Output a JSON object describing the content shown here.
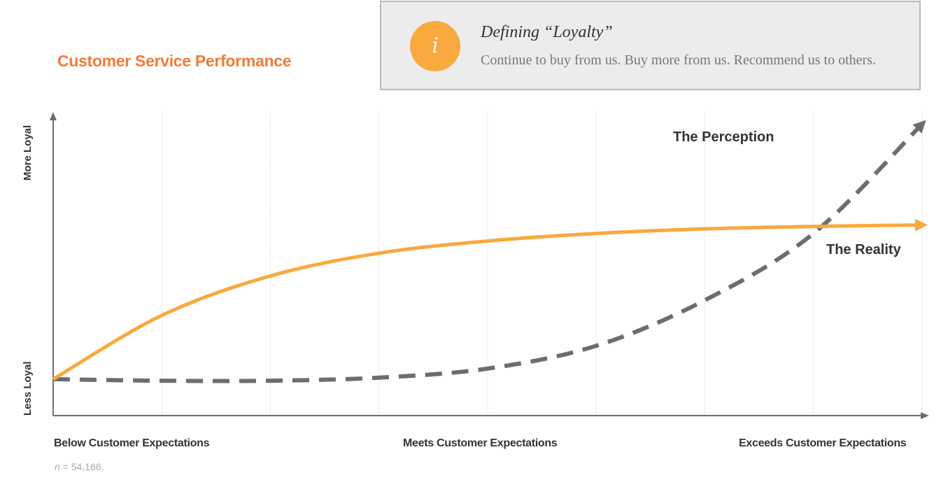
{
  "title": "Customer Service Performance",
  "info": {
    "icon": "info-icon",
    "icon_glyph": "i",
    "heading": "Defining “Loyalty”",
    "body": "Continue to buy from us. Buy more from us. Recommend us to others."
  },
  "axes": {
    "y_top": "More Loyal",
    "y_bottom": "Less Loyal",
    "x_left": "Below Customer Expectations",
    "x_mid": "Meets Customer Expectations",
    "x_right": "Exceeds Customer Expectations"
  },
  "note": {
    "n_symbol": "n",
    "n_value": " = 54,166."
  },
  "colors": {
    "title": "#f47a36",
    "reality": "#f9a93e",
    "perception": "#6d6d6d",
    "info_circle": "#f9a93e"
  },
  "chart_data": {
    "type": "line",
    "x": [
      0,
      1,
      2,
      3,
      4,
      5,
      6,
      7,
      8
    ],
    "ylim": [
      0,
      100
    ],
    "xlim": [
      0,
      8
    ],
    "grid": "vertical-dotted",
    "series": [
      {
        "name": "The Reality",
        "style": "solid",
        "color": "#f9a93e",
        "values": [
          12,
          33,
          46,
          53.5,
          57.5,
          60,
          61.5,
          62.3,
          62.8
        ]
      },
      {
        "name": "The Perception",
        "style": "dashed",
        "color": "#6d6d6d",
        "values": [
          12,
          11.5,
          11.5,
          12.5,
          15.5,
          23,
          38,
          60,
          96
        ]
      }
    ]
  }
}
